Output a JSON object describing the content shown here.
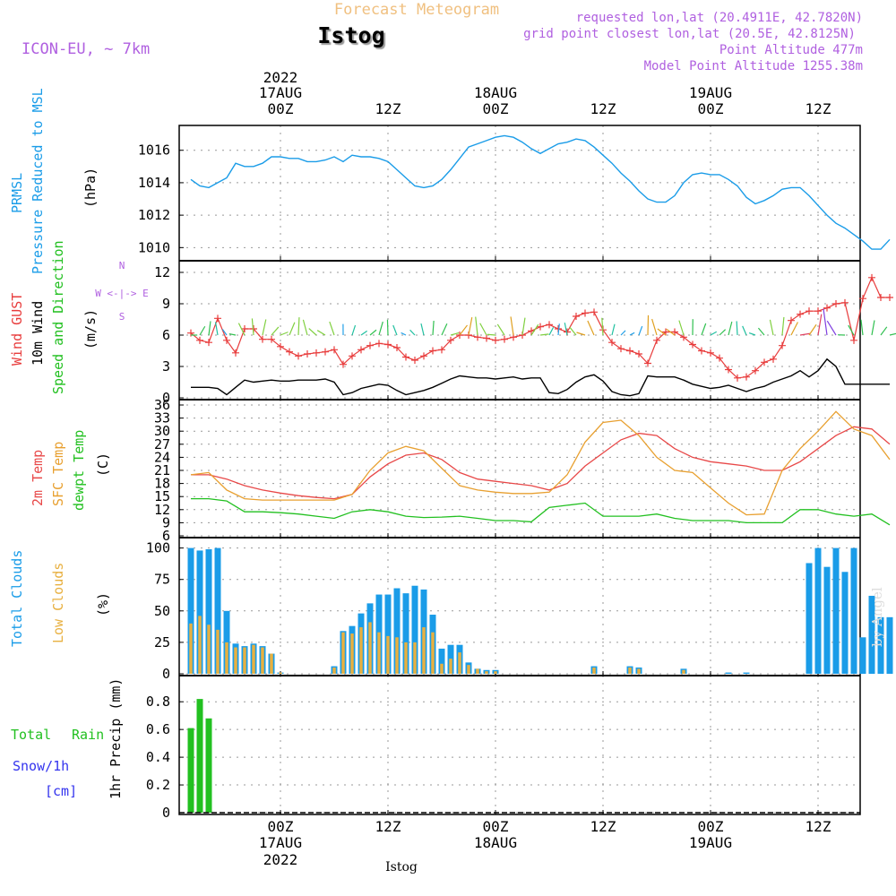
{
  "header": {
    "product": "Forecast Meteogram",
    "location": "Istog",
    "model": "ICON-EU, ~ 7km",
    "requested": "requested lon,lat (20.4911E, 42.7820N)",
    "grid_point": "grid point closest lon,lat (20.5E, 42.8125N)",
    "point_altitude": "Point Altitude 477m",
    "model_altitude": "Model Point Altitude 1255.38m",
    "credit": "by Angel",
    "bottom_label": "Istog"
  },
  "time_axis": {
    "top_labels": [
      {
        "line1": "2022",
        "line2": "17AUG",
        "line3": "00Z"
      },
      {
        "line1": "",
        "line2": "",
        "line3": "12Z"
      },
      {
        "line1": "",
        "line2": "18AUG",
        "line3": "00Z"
      },
      {
        "line1": "",
        "line2": "",
        "line3": "12Z"
      },
      {
        "line1": "",
        "line2": "19AUG",
        "line3": "00Z"
      },
      {
        "line1": "",
        "line2": "",
        "line3": "12Z"
      }
    ],
    "bottom_labels": [
      {
        "line1": "00Z",
        "line2": "17AUG",
        "line3": "2022"
      },
      {
        "line1": "12Z",
        "line2": "",
        "line3": ""
      },
      {
        "line1": "00Z",
        "line2": "18AUG",
        "line3": ""
      },
      {
        "line1": "12Z",
        "line2": "",
        "line3": ""
      },
      {
        "line1": "00Z",
        "line2": "19AUG",
        "line3": ""
      },
      {
        "line1": "12Z",
        "line2": "",
        "line3": ""
      }
    ]
  },
  "panels": {
    "pressure": {
      "label1": "PRMSL",
      "label2": "Pressure Reduced to MSL",
      "unit": "(hPa)",
      "ticks": [
        "1010",
        "1012",
        "1014",
        "1016"
      ]
    },
    "wind": {
      "label1": "Wind GUST",
      "label2": "10m Wind",
      "label3": "Speed and Direction",
      "unit": "(m/s)",
      "ticks": [
        "0",
        "3",
        "6",
        "9",
        "12"
      ],
      "compass_ns": "N",
      "compass_we": "W <-|-> E",
      "compass_s": "S"
    },
    "temp": {
      "label1": "2m Temp",
      "label2": "SFC Temp",
      "label3": "dewpt Temp",
      "unit": "(C)",
      "ticks": [
        "6",
        "9",
        "12",
        "15",
        "18",
        "21",
        "24",
        "27",
        "30",
        "33",
        "36"
      ]
    },
    "clouds": {
      "label1": "Total Clouds",
      "label2": "Low Clouds",
      "unit": "(%)",
      "ticks": [
        "0",
        "25",
        "50",
        "75",
        "100"
      ]
    },
    "precip": {
      "label1": "Total",
      "label1b": "Rain",
      "label2": "Snow/1h",
      "label3": "[cm]",
      "unit": "1hr Precip (mm)",
      "ticks": [
        "0",
        "0.2",
        "0.4",
        "0.6",
        "0.8"
      ]
    }
  },
  "colors": {
    "pressure": "#1a9ce8",
    "gust": "#e83c3c",
    "wind": "#000000",
    "temp2m": "#e84848",
    "sfc": "#e8a030",
    "dewpt": "#22c020",
    "total_clouds": "#1a9ce8",
    "low_clouds": "#e8b040",
    "rain": "#22c020",
    "snow": "#3333ee",
    "title_product": "#f0c080",
    "meta": "#b060e0",
    "grid": "#999999"
  },
  "chart_data": [
    {
      "type": "line",
      "name": "PRMSL",
      "units": "hPa",
      "ylim": [
        1009.3,
        1017.2
      ],
      "x_hours": [
        -10,
        -9,
        -8,
        -7,
        -6,
        -5,
        -4,
        -3,
        -2,
        -1,
        0,
        1,
        2,
        3,
        4,
        5,
        6,
        7,
        8,
        9,
        10,
        11,
        12,
        13,
        14,
        15,
        16,
        17,
        18,
        19,
        20,
        21,
        22,
        23,
        24,
        25,
        26,
        27,
        28,
        29,
        30,
        31,
        32,
        33,
        34,
        35,
        36,
        37,
        38,
        39,
        40,
        41,
        42,
        43,
        44,
        45,
        46,
        47,
        48,
        49,
        50,
        51,
        52,
        53,
        54,
        55,
        56,
        57,
        58,
        59,
        60,
        61,
        62,
        63,
        64,
        65,
        66,
        67,
        68
      ],
      "values": [
        1014.2,
        1013.8,
        1013.7,
        1014.0,
        1014.3,
        1015.2,
        1015.0,
        1015.0,
        1015.2,
        1015.6,
        1015.6,
        1015.5,
        1015.5,
        1015.3,
        1015.3,
        1015.4,
        1015.6,
        1015.3,
        1015.7,
        1015.6,
        1015.6,
        1015.5,
        1015.3,
        1014.8,
        1014.3,
        1013.8,
        1013.7,
        1013.8,
        1014.2,
        1014.8,
        1015.5,
        1016.2,
        1016.4,
        1016.6,
        1016.8,
        1016.9,
        1016.8,
        1016.5,
        1016.1,
        1015.8,
        1016.1,
        1016.4,
        1016.5,
        1016.7,
        1016.6,
        1016.2,
        1015.7,
        1015.2,
        1014.6,
        1014.1,
        1013.5,
        1013.0,
        1012.8,
        1012.8,
        1013.2,
        1014.0,
        1014.5,
        1014.6,
        1014.5,
        1014.5,
        1014.2,
        1013.8,
        1013.1,
        1012.7,
        1012.9,
        1013.2,
        1013.6,
        1013.7,
        1013.7,
        1013.2,
        1012.6,
        1012.0,
        1011.5,
        1011.2,
        1010.8,
        1010.4,
        1009.9,
        1009.9,
        1010.5
      ]
    },
    {
      "type": "line",
      "name": "10m Wind",
      "units": "m/s",
      "ylim": [
        0,
        12.6
      ],
      "x_hours": [
        -10,
        -9,
        -8,
        -7,
        -6,
        -5,
        -4,
        -3,
        -2,
        -1,
        0,
        1,
        2,
        3,
        4,
        5,
        6,
        7,
        8,
        9,
        10,
        11,
        12,
        13,
        14,
        15,
        16,
        17,
        18,
        19,
        20,
        21,
        22,
        23,
        24,
        25,
        26,
        27,
        28,
        29,
        30,
        31,
        32,
        33,
        34,
        35,
        36,
        37,
        38,
        39,
        40,
        41,
        42,
        43,
        44,
        45,
        46,
        47,
        48,
        49,
        50,
        51,
        52,
        53,
        54,
        55,
        56,
        57,
        58,
        59,
        60,
        61,
        62,
        63,
        64,
        65,
        66,
        67,
        68
      ],
      "values": [
        1.0,
        1.0,
        1.0,
        0.9,
        0.3,
        1.0,
        1.7,
        1.5,
        1.6,
        1.7,
        1.6,
        1.6,
        1.7,
        1.7,
        1.7,
        1.8,
        1.5,
        0.3,
        0.5,
        0.9,
        1.1,
        1.3,
        1.2,
        0.7,
        0.3,
        0.5,
        0.7,
        1.0,
        1.4,
        1.8,
        2.1,
        2.0,
        1.9,
        1.9,
        1.8,
        1.9,
        2.0,
        1.8,
        1.9,
        1.9,
        0.5,
        0.4,
        0.8,
        1.5,
        2.0,
        2.2,
        1.6,
        0.6,
        0.3,
        0.2,
        0.4,
        2.1,
        2.0,
        2.0,
        2.0,
        1.7,
        1.3,
        1.1,
        0.9,
        1.0,
        1.2,
        0.9,
        0.6,
        0.9,
        1.1,
        1.5,
        1.8,
        2.1,
        2.6,
        2.0,
        2.6,
        3.7,
        3.0,
        1.3,
        1.3,
        1.3,
        1.3,
        1.3,
        1.3
      ]
    },
    {
      "type": "line",
      "name": "Wind GUST",
      "units": "m/s",
      "ylim": [
        0,
        12.6
      ],
      "x_hours": [
        -10,
        -9,
        -8,
        -7,
        -6,
        -5,
        -4,
        -3,
        -2,
        -1,
        0,
        1,
        2,
        3,
        4,
        5,
        6,
        7,
        8,
        9,
        10,
        11,
        12,
        13,
        14,
        15,
        16,
        17,
        18,
        19,
        20,
        21,
        22,
        23,
        24,
        25,
        26,
        27,
        28,
        29,
        30,
        31,
        32,
        33,
        34,
        35,
        36,
        37,
        38,
        39,
        40,
        41,
        42,
        43,
        44,
        45,
        46,
        47,
        48,
        49,
        50,
        51,
        52,
        53,
        54,
        55,
        56,
        57,
        58,
        59,
        60,
        61,
        62,
        63,
        64,
        65,
        66,
        67,
        68
      ],
      "values": [
        6.2,
        5.5,
        5.3,
        7.6,
        5.5,
        4.3,
        6.6,
        6.6,
        5.6,
        5.6,
        4.9,
        4.4,
        4.0,
        4.2,
        4.3,
        4.4,
        4.6,
        3.2,
        4.0,
        4.6,
        5.0,
        5.2,
        5.1,
        4.8,
        3.9,
        3.6,
        4.0,
        4.5,
        4.6,
        5.5,
        6.0,
        6.0,
        5.8,
        5.7,
        5.5,
        5.6,
        5.8,
        6.0,
        6.4,
        6.8,
        7.0,
        6.6,
        6.3,
        7.8,
        8.1,
        8.2,
        6.5,
        5.3,
        4.7,
        4.5,
        4.2,
        3.3,
        5.5,
        6.3,
        6.3,
        5.8,
        5.1,
        4.5,
        4.3,
        3.8,
        2.7,
        1.9,
        2.0,
        2.6,
        3.4,
        3.7,
        5.0,
        7.4,
        8.0,
        8.3,
        8.3,
        8.6,
        9.0,
        9.1,
        5.5,
        9.5,
        11.5,
        9.6,
        9.6
      ]
    },
    {
      "type": "line",
      "name": "2m Temp",
      "units": "C",
      "ylim": [
        6,
        36
      ],
      "x_hours": [
        -10,
        -8,
        -6,
        -4,
        -2,
        0,
        2,
        4,
        6,
        8,
        10,
        12,
        14,
        16,
        18,
        20,
        22,
        24,
        26,
        28,
        30,
        32,
        34,
        36,
        38,
        40,
        42,
        44,
        46,
        48,
        50,
        52,
        54,
        56,
        58,
        60,
        62,
        64,
        66,
        68
      ],
      "values": [
        20,
        20,
        19,
        17.5,
        16.5,
        15.8,
        15.2,
        14.8,
        14.5,
        15.5,
        19.5,
        22.5,
        24.5,
        25.0,
        23.5,
        20.5,
        19.0,
        18.5,
        18.0,
        17.5,
        16.5,
        18.0,
        22.0,
        25.0,
        28.0,
        29.5,
        29.0,
        26.0,
        24.0,
        23.0,
        22.5,
        22.0,
        21.0,
        21.0,
        23.0,
        26.0,
        29.0,
        31.0,
        30.5,
        27.0
      ]
    },
    {
      "type": "line",
      "name": "SFC Temp",
      "units": "C",
      "ylim": [
        6,
        36
      ],
      "x_hours": [
        -10,
        -8,
        -6,
        -4,
        -2,
        0,
        2,
        4,
        6,
        8,
        10,
        12,
        14,
        16,
        18,
        20,
        22,
        24,
        26,
        28,
        30,
        32,
        34,
        36,
        38,
        40,
        42,
        44,
        46,
        48,
        50,
        52,
        54,
        56,
        58,
        60,
        62,
        64,
        66,
        68
      ],
      "values": [
        20,
        20.5,
        16.5,
        14.5,
        14.2,
        14.2,
        14.2,
        14.2,
        14.2,
        15.5,
        21.0,
        25.0,
        26.5,
        25.5,
        21.5,
        17.5,
        16.5,
        16.0,
        15.7,
        15.7,
        16.0,
        20.0,
        27.5,
        32.0,
        32.5,
        29.0,
        24.0,
        21.0,
        20.5,
        17.0,
        13.5,
        10.8,
        11.0,
        21.0,
        26.0,
        30.0,
        34.5,
        30.5,
        29.0,
        23.5
      ]
    },
    {
      "type": "line",
      "name": "dewpt Temp",
      "units": "C",
      "ylim": [
        6,
        36
      ],
      "x_hours": [
        -10,
        -8,
        -6,
        -4,
        -2,
        0,
        2,
        4,
        6,
        8,
        10,
        12,
        14,
        16,
        18,
        20,
        22,
        24,
        26,
        28,
        30,
        32,
        34,
        36,
        38,
        40,
        42,
        44,
        46,
        48,
        50,
        52,
        54,
        56,
        58,
        60,
        62,
        64,
        66,
        68
      ],
      "values": [
        14.5,
        14.5,
        14.0,
        11.5,
        11.5,
        11.3,
        11.0,
        10.5,
        10.0,
        11.5,
        12.0,
        11.5,
        10.5,
        10.2,
        10.3,
        10.5,
        10.0,
        9.5,
        9.5,
        9.2,
        12.5,
        13.0,
        13.5,
        10.5,
        10.5,
        10.5,
        11.0,
        10.0,
        9.5,
        9.5,
        9.5,
        9.0,
        9.0,
        9.0,
        12.0,
        12.0,
        11.0,
        10.5,
        11.0,
        8.5
      ]
    },
    {
      "type": "bar",
      "name": "Total Clouds",
      "units": "%",
      "ylim": [
        0,
        104
      ],
      "x_hours": [
        -10,
        -9,
        -8,
        -7,
        -6,
        -5,
        -4,
        -3,
        -2,
        -1,
        0,
        1,
        2,
        3,
        4,
        5,
        6,
        7,
        8,
        9,
        10,
        11,
        12,
        13,
        14,
        15,
        16,
        17,
        18,
        19,
        20,
        21,
        22,
        23,
        24,
        25,
        26,
        27,
        28,
        29,
        30,
        31,
        32,
        33,
        34,
        35,
        36,
        37,
        38,
        39,
        40,
        41,
        42,
        43,
        44,
        45,
        46,
        47,
        48,
        49,
        50,
        51,
        52,
        53,
        54,
        55,
        56,
        57,
        58,
        59,
        60,
        61,
        62,
        63,
        64,
        65,
        66,
        67,
        68
      ],
      "values": [
        100,
        98,
        99,
        100,
        50,
        24,
        22,
        24,
        22,
        16,
        1,
        0,
        0,
        0,
        0,
        0,
        6,
        34,
        38,
        48,
        56,
        63,
        63,
        68,
        64,
        70,
        67,
        47,
        20,
        23,
        23,
        9,
        4,
        3,
        3,
        0,
        0,
        0,
        0,
        0,
        0,
        0,
        0,
        0,
        0,
        6,
        0,
        0,
        0,
        6,
        5,
        0,
        0,
        0,
        0,
        4,
        0,
        0,
        0,
        0,
        1,
        0,
        1,
        0,
        0,
        0,
        0,
        0,
        0,
        88,
        100,
        85,
        100,
        81,
        100,
        29,
        62,
        45,
        45
      ]
    },
    {
      "type": "bar",
      "name": "Low Clouds",
      "units": "%",
      "ylim": [
        0,
        104
      ],
      "x_hours": [
        -10,
        -9,
        -8,
        -7,
        -6,
        -5,
        -4,
        -3,
        -2,
        -1,
        0,
        1,
        2,
        3,
        4,
        5,
        6,
        7,
        8,
        9,
        10,
        11,
        12,
        13,
        14,
        15,
        16,
        17,
        18,
        19,
        20,
        21,
        22,
        23,
        24,
        25,
        26,
        27,
        28,
        29,
        30,
        31,
        32,
        33,
        34,
        35,
        36,
        37,
        38,
        39,
        40,
        41,
        42,
        43,
        44,
        45,
        46,
        47,
        48,
        49,
        50,
        51,
        52,
        53,
        54,
        55,
        56,
        57,
        58,
        59,
        60,
        61,
        62,
        63,
        64,
        65,
        66,
        67,
        68
      ],
      "values": [
        40,
        46,
        39,
        35,
        25,
        21,
        21,
        23,
        21,
        16,
        1,
        0,
        0,
        0,
        0,
        0,
        5,
        33,
        32,
        37,
        41,
        33,
        30,
        29,
        25,
        25,
        37,
        33,
        8,
        12,
        17,
        7,
        4,
        2,
        2,
        0,
        0,
        0,
        0,
        0,
        0,
        0,
        0,
        0,
        0,
        5,
        0,
        0,
        0,
        5,
        4,
        0,
        0,
        0,
        0,
        3,
        0,
        0,
        0,
        0,
        0,
        0,
        0,
        0,
        0,
        0,
        0,
        0,
        0,
        0,
        0,
        0,
        0,
        0,
        0,
        0,
        0,
        0,
        0
      ]
    },
    {
      "type": "bar",
      "name": "1hr Precip",
      "units": "mm",
      "ylim": [
        0,
        0.95
      ],
      "x_hours": [
        -10,
        -9,
        -8
      ],
      "values": [
        0.61,
        0.82,
        0.68
      ]
    }
  ]
}
